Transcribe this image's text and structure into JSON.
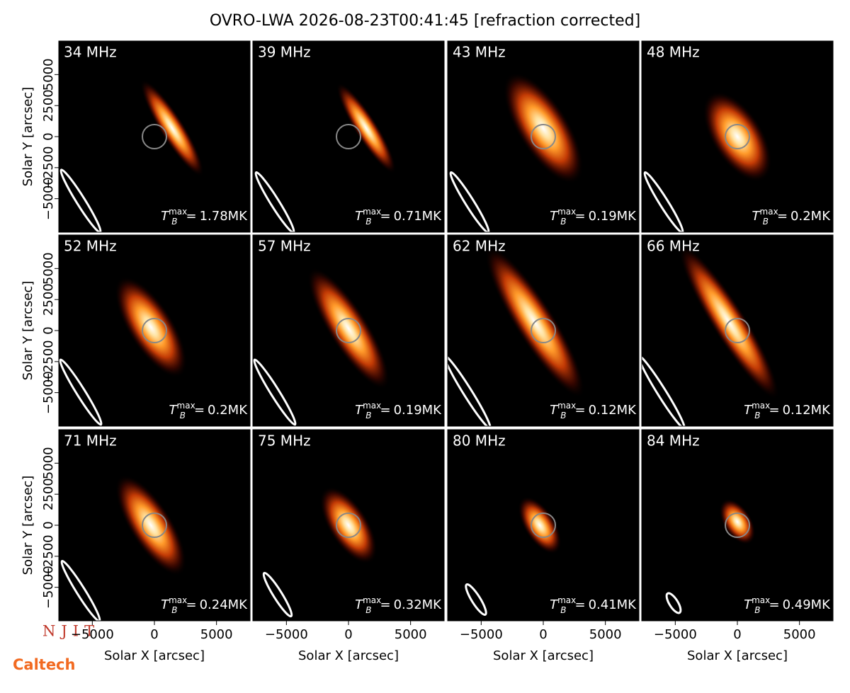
{
  "figure": {
    "title": "OVRO-LWA 2026-08-23T00:41:45 [refraction corrected]",
    "xlabel": "Solar X [arcsec]",
    "ylabel": "Solar Y [arcsec]",
    "xlim": [
      -7700,
      7700
    ],
    "ylim": [
      -7700,
      7700
    ],
    "xticks": [
      {
        "value": -5000,
        "label": "−5000"
      },
      0,
      5000
    ],
    "yticks": [
      {
        "value": -5000,
        "label": "−5000"
      },
      {
        "value": -2500,
        "label": "−2500"
      },
      0,
      2500,
      5000
    ],
    "tmax_symbol": {
      "base": "T",
      "sub": "B",
      "sup": "max",
      "eq": "="
    },
    "panels": [
      {
        "freq": "34 MHz",
        "tmax": "1.78MK"
      },
      {
        "freq": "39 MHz",
        "tmax": "0.71MK"
      },
      {
        "freq": "43 MHz",
        "tmax": "0.19MK"
      },
      {
        "freq": "48 MHz",
        "tmax": "0.2MK"
      },
      {
        "freq": "52 MHz",
        "tmax": "0.2MK"
      },
      {
        "freq": "57 MHz",
        "tmax": "0.19MK"
      },
      {
        "freq": "62 MHz",
        "tmax": "0.12MK"
      },
      {
        "freq": "66 MHz",
        "tmax": "0.12MK"
      },
      {
        "freq": "71 MHz",
        "tmax": "0.24MK"
      },
      {
        "freq": "75 MHz",
        "tmax": "0.32MK"
      },
      {
        "freq": "80 MHz",
        "tmax": "0.41MK"
      },
      {
        "freq": "84 MHz",
        "tmax": "0.49MK"
      }
    ],
    "logos": [
      "NJIT",
      "Caltech"
    ]
  }
}
